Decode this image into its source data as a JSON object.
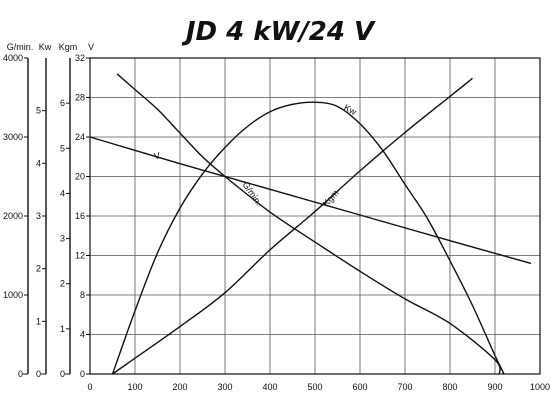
{
  "chart_data": {
    "type": "line",
    "title": "JD 4 kW/24 V",
    "x_axis": {
      "range": [
        0,
        1000
      ],
      "ticks": [
        "0",
        "100",
        "200",
        "300",
        "400",
        "500",
        "600",
        "700",
        "800",
        "900",
        "1000"
      ]
    },
    "y_axes": [
      {
        "label": "G/min.",
        "range": [
          0,
          4000
        ],
        "ticks": [
          "0",
          "1000",
          "2000",
          "3000",
          "4000"
        ]
      },
      {
        "label": "Kw",
        "range": [
          0,
          6
        ],
        "ticks": [
          "0",
          "1",
          "2",
          "3",
          "4",
          "5"
        ]
      },
      {
        "label": "Kgm",
        "range": [
          0,
          7
        ],
        "ticks": [
          "0",
          "1",
          "2",
          "3",
          "4",
          "5",
          "6"
        ]
      },
      {
        "label": "V",
        "range": [
          0,
          32
        ],
        "ticks": [
          "0",
          "4",
          "8",
          "12",
          "16",
          "20",
          "24",
          "28",
          "32"
        ]
      }
    ],
    "grid": true,
    "series": [
      {
        "name": "V",
        "axis": "V",
        "x": [
          0,
          200,
          400,
          600,
          800,
          980
        ],
        "y": [
          24,
          21.3,
          18.7,
          16.1,
          13.5,
          11.2
        ]
      },
      {
        "name": "Kw",
        "axis": "Kw",
        "x": [
          50,
          100,
          150,
          200,
          250,
          300,
          350,
          400,
          450,
          500,
          550,
          600,
          650,
          700,
          750,
          800,
          850,
          900,
          920
        ],
        "y": [
          0,
          1.2,
          2.3,
          3.15,
          3.8,
          4.3,
          4.7,
          4.98,
          5.12,
          5.16,
          5.08,
          4.75,
          4.25,
          3.6,
          2.95,
          2.15,
          1.3,
          0.35,
          0
        ]
      },
      {
        "name": "Kgm",
        "axis": "Kgm",
        "x": [
          50,
          100,
          200,
          300,
          400,
          500,
          600,
          700,
          800,
          850
        ],
        "y": [
          0,
          0.35,
          1.05,
          1.8,
          2.75,
          3.6,
          4.5,
          5.35,
          6.15,
          6.55
        ]
      },
      {
        "name": "G/min.",
        "axis": "G/min.",
        "x": [
          60,
          100,
          150,
          200,
          250,
          300,
          400,
          500,
          600,
          700,
          800,
          900,
          910
        ],
        "y": [
          3800,
          3600,
          3350,
          3050,
          2750,
          2500,
          2050,
          1670,
          1300,
          950,
          640,
          180,
          0
        ]
      }
    ],
    "series_label_positions": {
      "V": [
        150,
        21.8
      ],
      "Kw": [
        575,
        26.5
      ],
      "Kgm": [
        540,
        17.6
      ],
      "G/min.": [
        355,
        18.1
      ]
    }
  }
}
